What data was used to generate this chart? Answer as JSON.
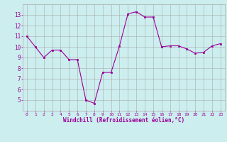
{
  "x": [
    0,
    1,
    2,
    3,
    4,
    5,
    6,
    7,
    8,
    9,
    10,
    11,
    12,
    13,
    14,
    15,
    16,
    17,
    18,
    19,
    20,
    21,
    22,
    23
  ],
  "y": [
    11.0,
    10.0,
    9.0,
    9.7,
    9.7,
    8.8,
    8.8,
    5.0,
    4.7,
    7.6,
    7.6,
    10.1,
    13.1,
    13.3,
    12.8,
    12.8,
    10.0,
    10.1,
    10.1,
    9.8,
    9.4,
    9.5,
    10.1,
    10.3
  ],
  "line_color": "#990099",
  "marker_color": "#990099",
  "bg_color": "#cceeee",
  "grid_color": "#aaaaaa",
  "text_color": "#990099",
  "xlabel": "Windchill (Refroidissement éolien,°C)",
  "ylim_min": 4,
  "ylim_max": 14,
  "xlim_min": -0.5,
  "xlim_max": 23.5,
  "yticks": [
    5,
    6,
    7,
    8,
    9,
    10,
    11,
    12,
    13
  ],
  "xticks": [
    0,
    1,
    2,
    3,
    4,
    5,
    6,
    7,
    8,
    9,
    10,
    11,
    12,
    13,
    14,
    15,
    16,
    17,
    18,
    19,
    20,
    21,
    22,
    23
  ]
}
